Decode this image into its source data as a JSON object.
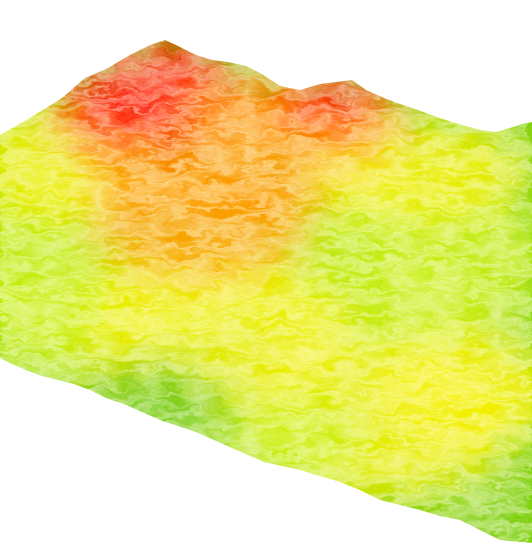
{
  "scene": {
    "kind": "3d-terrain-elevation-render",
    "background_color": "#ffffff",
    "elevation_colormap": [
      {
        "stop": 0.0,
        "color": "#6cc80a"
      },
      {
        "stop": 0.35,
        "color": "#c8ee10"
      },
      {
        "stop": 0.55,
        "color": "#f6f000"
      },
      {
        "stop": 0.75,
        "color": "#ff9a00"
      },
      {
        "stop": 1.0,
        "color": "#ff1600"
      }
    ],
    "icons": [
      "terrain-surface-icon"
    ]
  }
}
